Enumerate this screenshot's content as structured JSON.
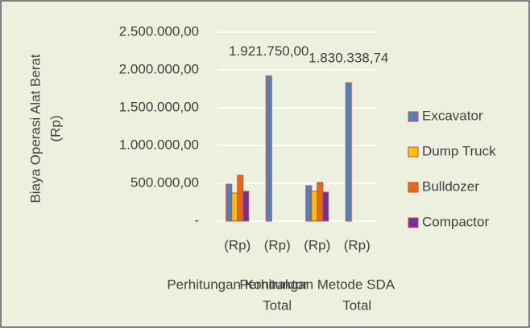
{
  "chart_data": {
    "type": "bar",
    "ylabel": [
      "Biaya Operasi Alat Berat",
      "(Rp)"
    ],
    "categories": [
      "(Rp)",
      "(Rp)",
      "(Rp)",
      "(Rp)"
    ],
    "group_labels": [
      "Perhitungan Kontraktor",
      "Total",
      "Perhitungan Metode SDA",
      "Total"
    ],
    "series": [
      {
        "name": "Excavator",
        "color": "#4f81bd",
        "values": [
          489000,
          1921750,
          468000,
          1830338.74
        ],
        "value_labels": [
          null,
          "1.921.750,00",
          null,
          "1.830.338,74"
        ]
      },
      {
        "name": "Dump Truck",
        "color": "#ffc000",
        "values": [
          372000,
          null,
          394000,
          null
        ]
      },
      {
        "name": "Bulldozer",
        "color": "#e46c0a",
        "values": [
          606000,
          null,
          511000,
          null
        ]
      },
      {
        "name": "Compactor",
        "color": "#7030a0",
        "values": [
          394000,
          null,
          383000,
          null
        ]
      }
    ],
    "ylim": [
      0,
      2500000
    ],
    "yticks": [
      {
        "value": 0,
        "label": "-"
      },
      {
        "value": 500000,
        "label": "500.000,00"
      },
      {
        "value": 1000000,
        "label": "1.000.000,00"
      },
      {
        "value": 1500000,
        "label": "1.500.000,00"
      },
      {
        "value": 2000000,
        "label": "2.000.000,00"
      },
      {
        "value": 2500000,
        "label": "2.500.000,00"
      }
    ],
    "grid": true,
    "legend": "right"
  }
}
